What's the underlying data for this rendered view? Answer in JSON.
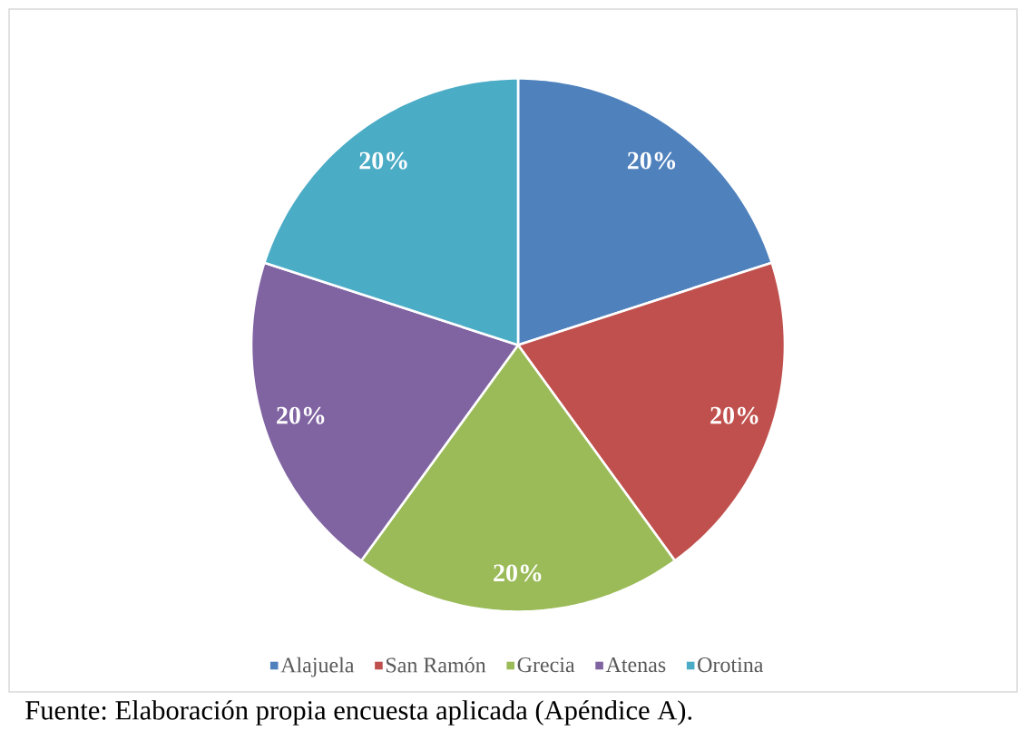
{
  "chart_data": {
    "type": "pie",
    "categories": [
      "Alajuela",
      "San Ramón",
      "Grecia",
      "Atenas",
      "Orotina"
    ],
    "values": [
      20,
      20,
      20,
      20,
      20
    ],
    "colors": [
      "#4f81bd",
      "#c0504d",
      "#9bbb59",
      "#8064a2",
      "#4bacc6"
    ],
    "value_labels": [
      "20%",
      "20%",
      "20%",
      "20%",
      "20%"
    ],
    "legend": "bottom",
    "annotations": [
      "Fuente: Elaboración propia encuesta aplicada (Apéndice A)."
    ]
  }
}
